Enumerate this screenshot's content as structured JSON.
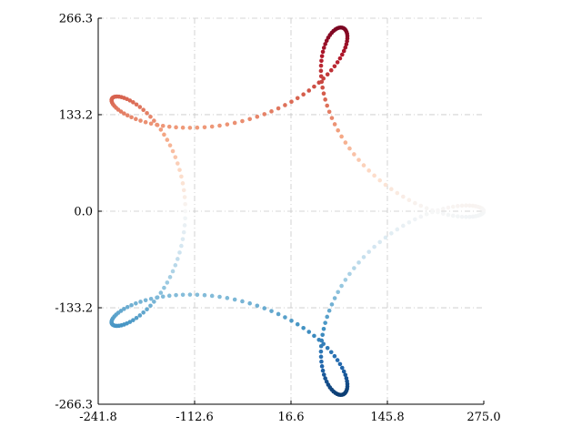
{
  "chart_data": {
    "type": "scatter",
    "title": "",
    "xlabel": "",
    "ylabel": "",
    "xlim": [
      -241.8,
      275.0
    ],
    "ylim": [
      -266.3,
      266.3
    ],
    "grid": true,
    "legend": "none",
    "x_ticks": [
      "-241.8",
      "-112.6",
      "16.6",
      "145.8",
      "275.0"
    ],
    "x_tick_values": [
      -241.8,
      -112.6,
      16.6,
      145.8,
      275.0
    ],
    "y_ticks": [
      "266.3",
      "133.2",
      "0.0",
      "-133.2",
      "-266.3"
    ],
    "y_tick_values": [
      266.3,
      133.2,
      0.0,
      -133.2,
      -266.3
    ],
    "colormap": "RdBu",
    "colormap_stops": [
      "#67001f",
      "#b2182b",
      "#d6604d",
      "#f4a582",
      "#fddbc7",
      "#f7f7f7",
      "#d1e5f0",
      "#92c5de",
      "#4393c3",
      "#2166ac",
      "#053061"
    ],
    "series": [
      {
        "curve": "epitrochoid-like rose loop",
        "point_count": 300,
        "x_amplitudes": [
          200,
          75
        ],
        "y_amplitudes": [
          200,
          66.3
        ],
        "frequency_ratio": 4
      }
    ]
  }
}
